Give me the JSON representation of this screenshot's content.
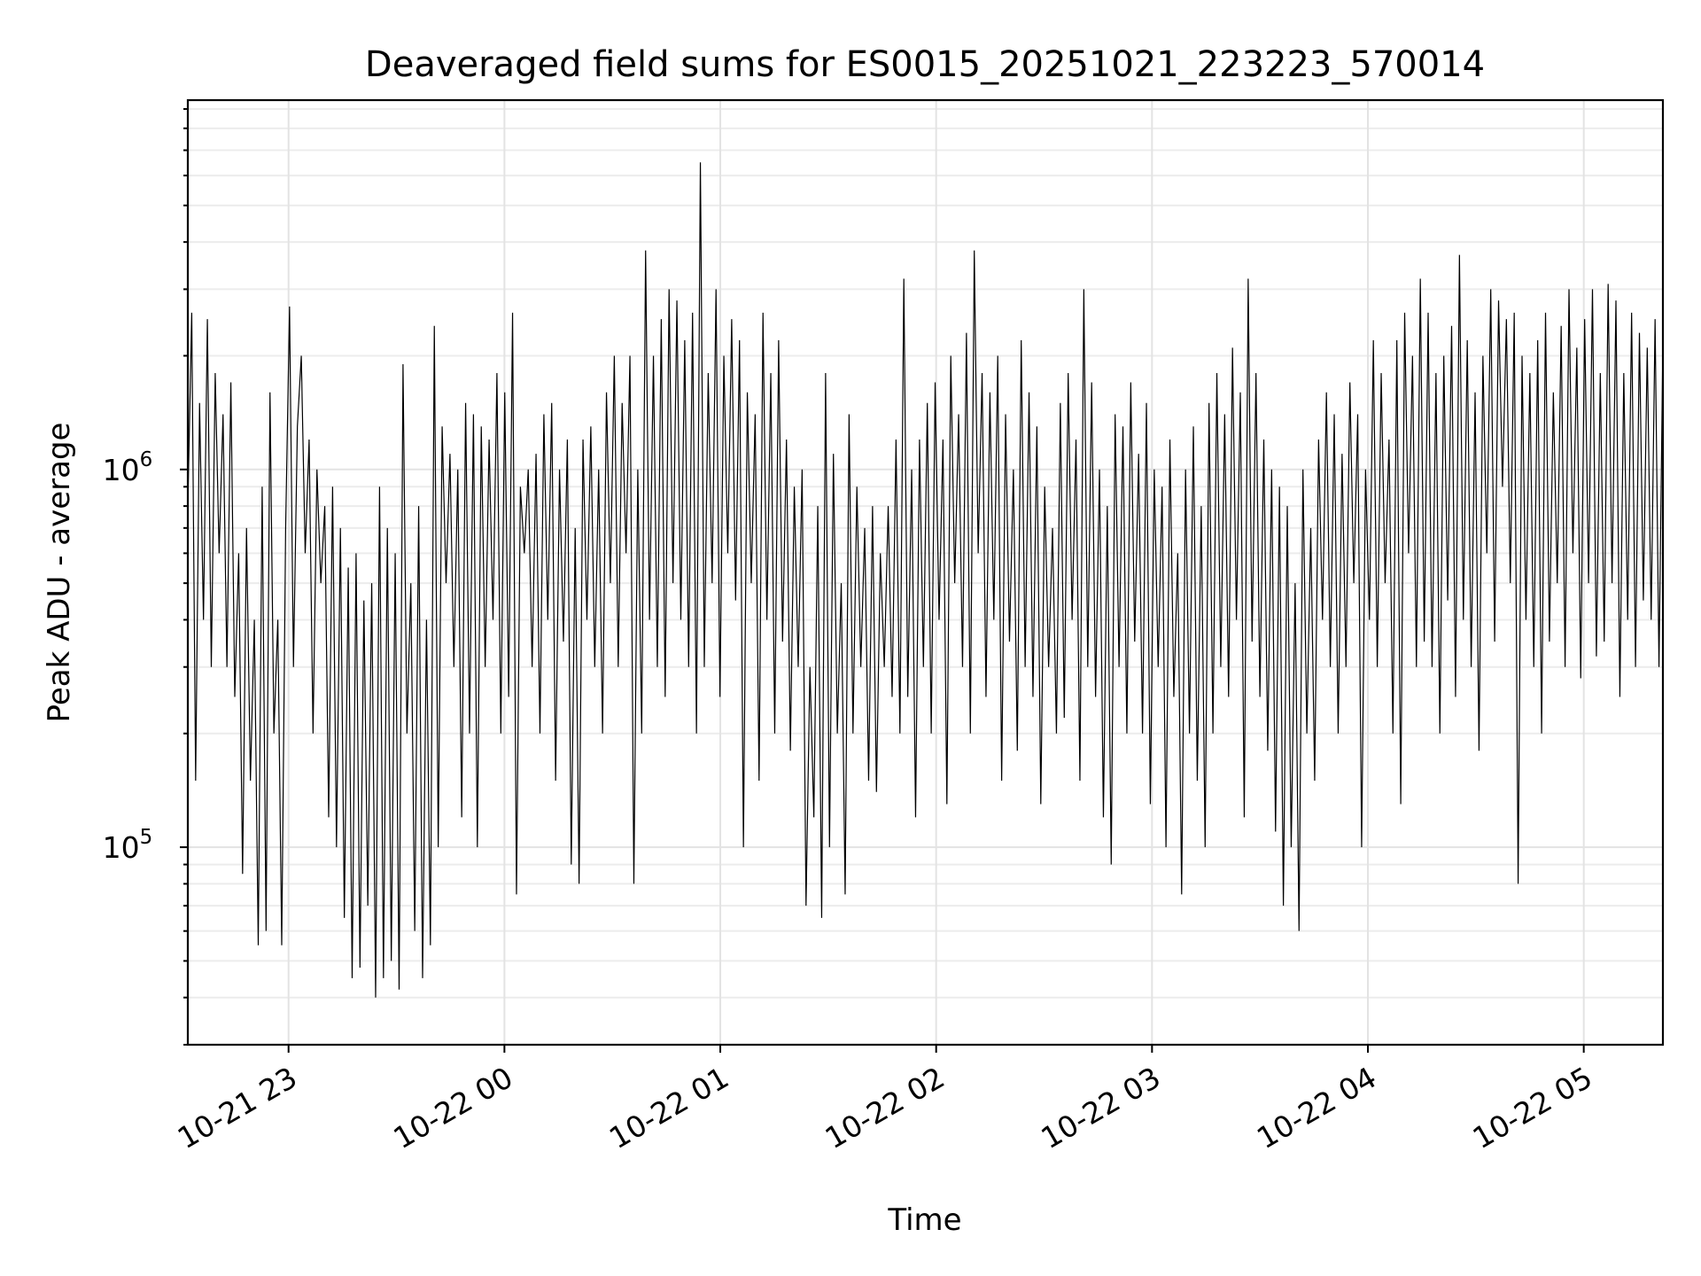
{
  "chart_data": {
    "type": "line",
    "title": "Deaveraged field sums for ES0015_20251021_223223_570014",
    "xlabel": "Time",
    "ylabel": "Peak ADU - average",
    "x_axis": {
      "kind": "time",
      "xlim": [
        "2025-10-21 22:32",
        "2025-10-22 05:22"
      ],
      "ticks": [
        "2025-10-21 23:00",
        "2025-10-22 00:00",
        "2025-10-22 01:00",
        "2025-10-22 02:00",
        "2025-10-22 03:00",
        "2025-10-22 04:00",
        "2025-10-22 05:00"
      ],
      "tick_labels": [
        "10-21 23",
        "10-22 00",
        "10-22 01",
        "10-22 02",
        "10-22 03",
        "10-22 04",
        "10-22 05"
      ]
    },
    "y_axis": {
      "scale": "log",
      "ylim": [
        30000,
        9500000
      ],
      "ticks": [
        100000,
        1000000
      ],
      "tick_labels": [
        {
          "base": "10",
          "exp": "5"
        },
        {
          "base": "10",
          "exp": "6"
        }
      ]
    },
    "grid": true,
    "legend": "none",
    "line_color": "#000000",
    "series": [
      {
        "x_start": "2025-10-21 22:32",
        "x_end": "2025-10-22 05:22",
        "y": [
          800000,
          2600000,
          150000,
          1500000,
          400000,
          2500000,
          300000,
          1800000,
          600000,
          1400000,
          300000,
          1700000,
          250000,
          600000,
          85000,
          700000,
          150000,
          400000,
          55000,
          900000,
          60000,
          1600000,
          200000,
          400000,
          55000,
          700000,
          2700000,
          300000,
          1300000,
          2000000,
          600000,
          1200000,
          200000,
          1000000,
          500000,
          800000,
          120000,
          900000,
          100000,
          700000,
          65000,
          550000,
          45000,
          600000,
          48000,
          450000,
          70000,
          500000,
          40000,
          900000,
          45000,
          700000,
          50000,
          600000,
          42000,
          1900000,
          200000,
          500000,
          60000,
          800000,
          45000,
          400000,
          55000,
          2400000,
          100000,
          1300000,
          500000,
          1100000,
          300000,
          1000000,
          120000,
          1500000,
          200000,
          1400000,
          100000,
          1300000,
          300000,
          1200000,
          400000,
          1800000,
          200000,
          1600000,
          250000,
          2600000,
          75000,
          900000,
          600000,
          1000000,
          300000,
          1100000,
          200000,
          1400000,
          400000,
          1500000,
          150000,
          1000000,
          350000,
          1200000,
          90000,
          700000,
          80000,
          1200000,
          400000,
          1300000,
          300000,
          1000000,
          200000,
          1600000,
          500000,
          2000000,
          300000,
          1500000,
          600000,
          2000000,
          80000,
          1000000,
          200000,
          3800000,
          400000,
          2000000,
          300000,
          2500000,
          250000,
          3000000,
          500000,
          2800000,
          400000,
          2200000,
          300000,
          2600000,
          200000,
          6500000,
          300000,
          1800000,
          500000,
          3000000,
          250000,
          2000000,
          600000,
          2500000,
          450000,
          2200000,
          100000,
          1600000,
          500000,
          1400000,
          150000,
          2600000,
          400000,
          1800000,
          200000,
          2200000,
          350000,
          1200000,
          180000,
          900000,
          300000,
          1000000,
          70000,
          300000,
          120000,
          800000,
          65000,
          1800000,
          100000,
          1100000,
          200000,
          500000,
          75000,
          1400000,
          200000,
          900000,
          300000,
          700000,
          150000,
          800000,
          140000,
          600000,
          300000,
          800000,
          250000,
          1200000,
          200000,
          3200000,
          250000,
          1000000,
          120000,
          1200000,
          300000,
          1500000,
          200000,
          1700000,
          400000,
          1200000,
          130000,
          2000000,
          500000,
          1400000,
          300000,
          2300000,
          200000,
          3800000,
          600000,
          1800000,
          250000,
          1600000,
          400000,
          2000000,
          150000,
          1400000,
          350000,
          1000000,
          180000,
          2200000,
          300000,
          1600000,
          250000,
          1300000,
          130000,
          900000,
          300000,
          700000,
          200000,
          1500000,
          220000,
          1800000,
          400000,
          1200000,
          150000,
          3000000,
          300000,
          1700000,
          250000,
          1000000,
          120000,
          800000,
          90000,
          1400000,
          300000,
          1300000,
          200000,
          1700000,
          350000,
          1100000,
          200000,
          1500000,
          130000,
          1000000,
          300000,
          900000,
          100000,
          1200000,
          250000,
          600000,
          75000,
          1000000,
          200000,
          1300000,
          150000,
          800000,
          100000,
          1500000,
          200000,
          1800000,
          300000,
          1400000,
          250000,
          2100000,
          400000,
          1600000,
          120000,
          3200000,
          350000,
          1800000,
          250000,
          1200000,
          180000,
          1000000,
          110000,
          900000,
          70000,
          800000,
          100000,
          500000,
          60000,
          1000000,
          200000,
          700000,
          150000,
          1200000,
          400000,
          1600000,
          300000,
          1400000,
          200000,
          1100000,
          300000,
          1700000,
          500000,
          1400000,
          100000,
          1000000,
          400000,
          2200000,
          300000,
          1800000,
          500000,
          1200000,
          200000,
          2200000,
          130000,
          2600000,
          600000,
          2000000,
          300000,
          3200000,
          350000,
          2600000,
          300000,
          1800000,
          200000,
          2000000,
          450000,
          2400000,
          250000,
          3700000,
          400000,
          2200000,
          300000,
          1600000,
          180000,
          2000000,
          600000,
          3000000,
          350000,
          2800000,
          900000,
          2500000,
          500000,
          2600000,
          80000,
          2000000,
          400000,
          1800000,
          300000,
          2200000,
          200000,
          2600000,
          350000,
          1600000,
          500000,
          2400000,
          300000,
          3000000,
          600000,
          2100000,
          280000,
          2500000,
          500000,
          3000000,
          320000,
          1800000,
          350000,
          3100000,
          500000,
          2800000,
          250000,
          1800000,
          400000,
          2600000,
          300000,
          2300000,
          450000,
          2100000,
          400000,
          2500000,
          300000,
          2200000
        ]
      }
    ]
  }
}
